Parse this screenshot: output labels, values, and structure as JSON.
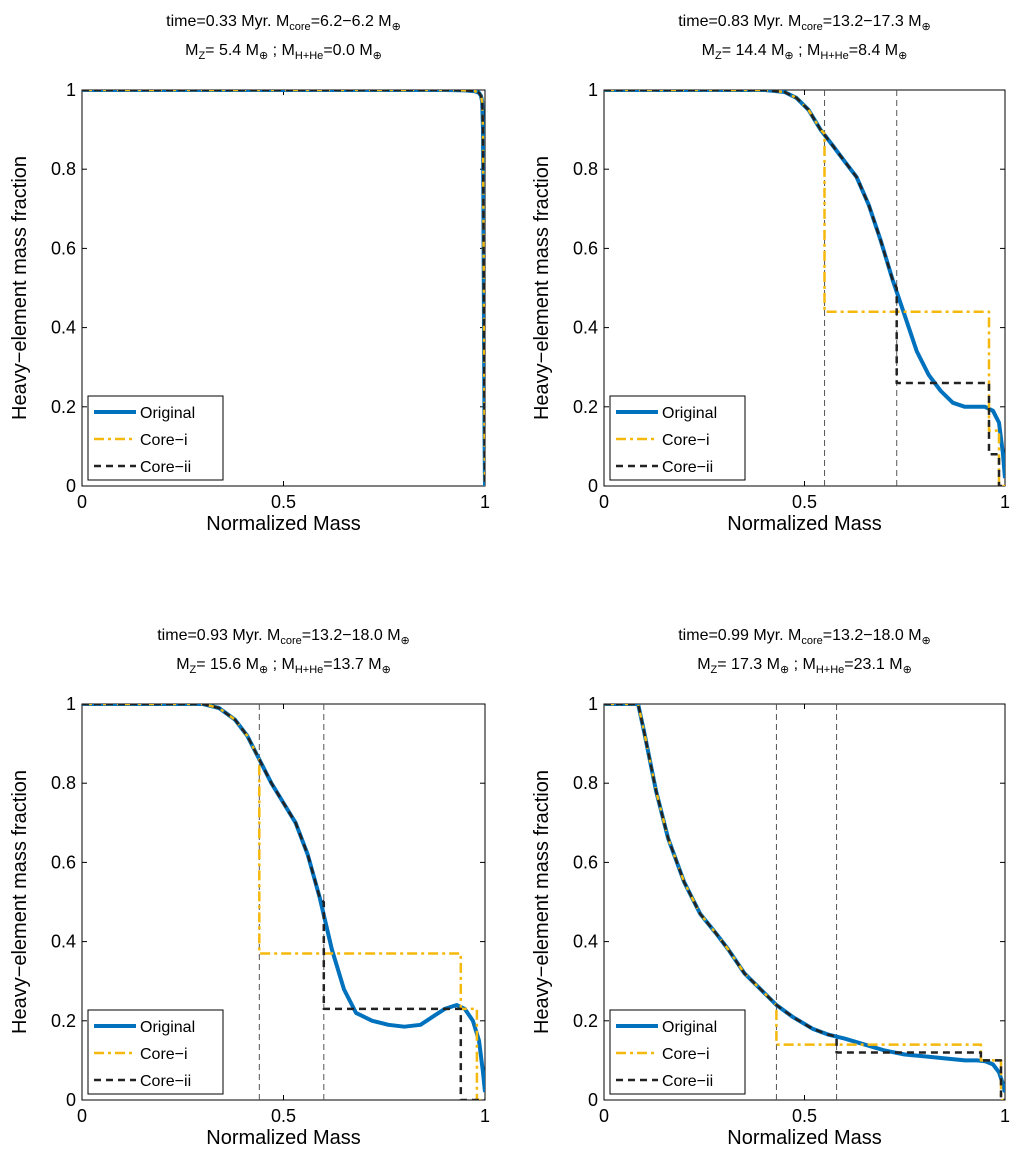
{
  "colors": {
    "original": "#0072BD",
    "core_i": "#F5B80C",
    "core_ii": "#222222",
    "divider": "#555555"
  },
  "legend": [
    "Original",
    "Core−i",
    "Core−ii"
  ],
  "chart_data": [
    {
      "type": "line",
      "title": {
        "time": "time=0.33 Myr.",
        "mcore": "=6.2−6.2 M",
        "mz": "= 5.4 M",
        "mhhe": "=0.0 M"
      },
      "xlabel": "Normalized Mass",
      "ylabel": "Heavy−element mass fraction",
      "xlim": [
        0,
        1
      ],
      "ylim": [
        0,
        1
      ],
      "xticks": [
        "0",
        "0.5",
        "1"
      ],
      "yticks": [
        "0",
        "0.2",
        "0.4",
        "0.6",
        "0.8",
        "1"
      ],
      "legend_position": "bottom-left",
      "dividers": [],
      "series": [
        {
          "name": "Original",
          "x": [
            0,
            0.9,
            0.95,
            0.975,
            0.985,
            0.99,
            0.993,
            0.995,
            0.997,
            0.999,
            1.0
          ],
          "y": [
            1,
            1,
            0.999,
            0.997,
            0.993,
            0.985,
            0.97,
            0.9,
            0.5,
            0.1,
            0
          ]
        },
        {
          "name": "Core−i",
          "x": [
            0,
            0.9,
            0.95,
            0.975,
            0.985,
            0.99,
            0.993,
            0.995,
            0.997,
            0.999,
            1.0
          ],
          "y": [
            1,
            1,
            0.999,
            0.997,
            0.993,
            0.985,
            0.97,
            0.9,
            0.5,
            0.1,
            0
          ]
        },
        {
          "name": "Core−ii",
          "x": [
            0,
            0.9,
            0.95,
            0.975,
            0.985,
            0.99,
            0.993,
            0.995,
            0.997,
            0.999,
            1.0
          ],
          "y": [
            1,
            1,
            0.999,
            0.997,
            0.993,
            0.985,
            0.97,
            0.9,
            0.5,
            0.1,
            0
          ]
        }
      ]
    },
    {
      "type": "line",
      "title": {
        "time": "time=0.83 Myr.",
        "mcore": "=13.2−17.3 M",
        "mz": "= 14.4 M",
        "mhhe": "=8.4 M"
      },
      "xlabel": "Normalized Mass",
      "ylabel": "Heavy−element mass fraction",
      "xlim": [
        0,
        1
      ],
      "ylim": [
        0,
        1
      ],
      "xticks": [
        "0",
        "0.5",
        "1"
      ],
      "yticks": [
        "0",
        "0.2",
        "0.4",
        "0.6",
        "0.8",
        "1"
      ],
      "legend_position": "bottom-left",
      "dividers": [
        0.55,
        0.73
      ],
      "series": [
        {
          "name": "Original",
          "x": [
            0,
            0.4,
            0.45,
            0.48,
            0.51,
            0.54,
            0.57,
            0.6,
            0.63,
            0.66,
            0.69,
            0.72,
            0.75,
            0.78,
            0.81,
            0.84,
            0.87,
            0.9,
            0.93,
            0.95,
            0.97,
            0.985,
            0.995,
            1.0
          ],
          "y": [
            1,
            1,
            0.995,
            0.98,
            0.95,
            0.9,
            0.86,
            0.82,
            0.78,
            0.71,
            0.62,
            0.52,
            0.43,
            0.34,
            0.28,
            0.24,
            0.21,
            0.2,
            0.2,
            0.2,
            0.19,
            0.16,
            0.08,
            0.02
          ]
        },
        {
          "name": "Core−i",
          "x": [
            0,
            0.4,
            0.45,
            0.48,
            0.51,
            0.54,
            0.55,
            0.55,
            0.96,
            0.96,
            0.985,
            0.985,
            1.0
          ],
          "y": [
            1,
            1,
            0.995,
            0.98,
            0.95,
            0.9,
            0.89,
            0.44,
            0.44,
            0.14,
            0.14,
            0.0,
            0.0
          ]
        },
        {
          "name": "Core−ii",
          "x": [
            0,
            0.4,
            0.45,
            0.48,
            0.51,
            0.54,
            0.57,
            0.6,
            0.63,
            0.66,
            0.69,
            0.72,
            0.73,
            0.73,
            0.96,
            0.96,
            0.985,
            0.985,
            1.0
          ],
          "y": [
            1,
            1,
            0.995,
            0.98,
            0.95,
            0.9,
            0.86,
            0.82,
            0.78,
            0.71,
            0.62,
            0.52,
            0.5,
            0.26,
            0.26,
            0.08,
            0.08,
            0.0,
            0.0
          ]
        }
      ]
    },
    {
      "type": "line",
      "title": {
        "time": "time=0.93 Myr.",
        "mcore": "=13.2−18.0 M",
        "mz": "= 15.6 M",
        "mhhe": "=13.7 M"
      },
      "xlabel": "Normalized Mass",
      "ylabel": "Heavy−element mass fraction",
      "xlim": [
        0,
        1
      ],
      "ylim": [
        0,
        1
      ],
      "xticks": [
        "0",
        "0.5",
        "1"
      ],
      "yticks": [
        "0",
        "0.2",
        "0.4",
        "0.6",
        "0.8",
        "1"
      ],
      "legend_position": "bottom-left",
      "dividers": [
        0.44,
        0.6
      ],
      "series": [
        {
          "name": "Original",
          "x": [
            0,
            0.3,
            0.34,
            0.38,
            0.41,
            0.44,
            0.47,
            0.5,
            0.53,
            0.56,
            0.59,
            0.62,
            0.65,
            0.68,
            0.72,
            0.76,
            0.8,
            0.84,
            0.87,
            0.9,
            0.93,
            0.95,
            0.97,
            0.985,
            0.995,
            1.0
          ],
          "y": [
            1,
            1,
            0.99,
            0.96,
            0.92,
            0.86,
            0.8,
            0.75,
            0.7,
            0.62,
            0.51,
            0.38,
            0.28,
            0.22,
            0.2,
            0.19,
            0.185,
            0.19,
            0.21,
            0.23,
            0.24,
            0.23,
            0.2,
            0.15,
            0.07,
            0.02
          ]
        },
        {
          "name": "Core−i",
          "x": [
            0,
            0.3,
            0.34,
            0.38,
            0.41,
            0.43,
            0.44,
            0.44,
            0.94,
            0.94,
            0.98,
            0.98,
            1.0
          ],
          "y": [
            1,
            1,
            0.99,
            0.96,
            0.92,
            0.88,
            0.86,
            0.37,
            0.37,
            0.23,
            0.23,
            0.0,
            0.0
          ]
        },
        {
          "name": "Core−ii",
          "x": [
            0,
            0.3,
            0.34,
            0.38,
            0.41,
            0.44,
            0.47,
            0.5,
            0.53,
            0.56,
            0.59,
            0.6,
            0.6,
            0.94,
            0.94,
            0.98,
            0.98,
            1.0
          ],
          "y": [
            1,
            1,
            0.99,
            0.96,
            0.92,
            0.86,
            0.8,
            0.75,
            0.7,
            0.62,
            0.51,
            0.5,
            0.23,
            0.23,
            0.0,
            0.0,
            0.0,
            0.0
          ]
        }
      ]
    },
    {
      "type": "line",
      "title": {
        "time": "time=0.99 Myr.",
        "mcore": "=13.2−18.0 M",
        "mz": "= 17.3 M",
        "mhhe": "=23.1 M"
      },
      "xlabel": "Normalized Mass",
      "ylabel": "Heavy−element mass fraction",
      "xlim": [
        0,
        1
      ],
      "ylim": [
        0,
        1
      ],
      "xticks": [
        "0",
        "0.5",
        "1"
      ],
      "yticks": [
        "0",
        "0.2",
        "0.4",
        "0.6",
        "0.8",
        "1"
      ],
      "legend_position": "bottom-left",
      "dividers": [
        0.43,
        0.58
      ],
      "series": [
        {
          "name": "Original",
          "x": [
            0,
            0.085,
            0.1,
            0.13,
            0.16,
            0.2,
            0.24,
            0.28,
            0.31,
            0.35,
            0.4,
            0.43,
            0.47,
            0.52,
            0.56,
            0.6,
            0.65,
            0.7,
            0.75,
            0.8,
            0.85,
            0.9,
            0.93,
            0.95,
            0.97,
            0.985,
            0.995,
            1.0
          ],
          "y": [
            1,
            1,
            0.93,
            0.78,
            0.66,
            0.55,
            0.47,
            0.42,
            0.38,
            0.32,
            0.27,
            0.24,
            0.21,
            0.18,
            0.165,
            0.155,
            0.14,
            0.125,
            0.115,
            0.11,
            0.105,
            0.1,
            0.1,
            0.098,
            0.09,
            0.07,
            0.04,
            0.02
          ]
        },
        {
          "name": "Core−i",
          "x": [
            0,
            0.085,
            0.1,
            0.13,
            0.16,
            0.2,
            0.24,
            0.28,
            0.31,
            0.35,
            0.4,
            0.43,
            0.43,
            0.94,
            0.94,
            0.99,
            0.99,
            1.0
          ],
          "y": [
            1,
            1,
            0.93,
            0.78,
            0.66,
            0.55,
            0.47,
            0.42,
            0.38,
            0.32,
            0.27,
            0.24,
            0.14,
            0.14,
            0.1,
            0.1,
            0.0,
            0.0
          ]
        },
        {
          "name": "Core−ii",
          "x": [
            0,
            0.085,
            0.1,
            0.13,
            0.16,
            0.2,
            0.24,
            0.28,
            0.31,
            0.35,
            0.4,
            0.43,
            0.47,
            0.52,
            0.56,
            0.58,
            0.58,
            0.94,
            0.94,
            0.99,
            0.99,
            1.0
          ],
          "y": [
            1,
            1,
            0.93,
            0.78,
            0.66,
            0.55,
            0.47,
            0.42,
            0.38,
            0.32,
            0.27,
            0.24,
            0.21,
            0.18,
            0.165,
            0.16,
            0.12,
            0.12,
            0.1,
            0.1,
            0.0,
            0.0
          ]
        }
      ]
    }
  ]
}
